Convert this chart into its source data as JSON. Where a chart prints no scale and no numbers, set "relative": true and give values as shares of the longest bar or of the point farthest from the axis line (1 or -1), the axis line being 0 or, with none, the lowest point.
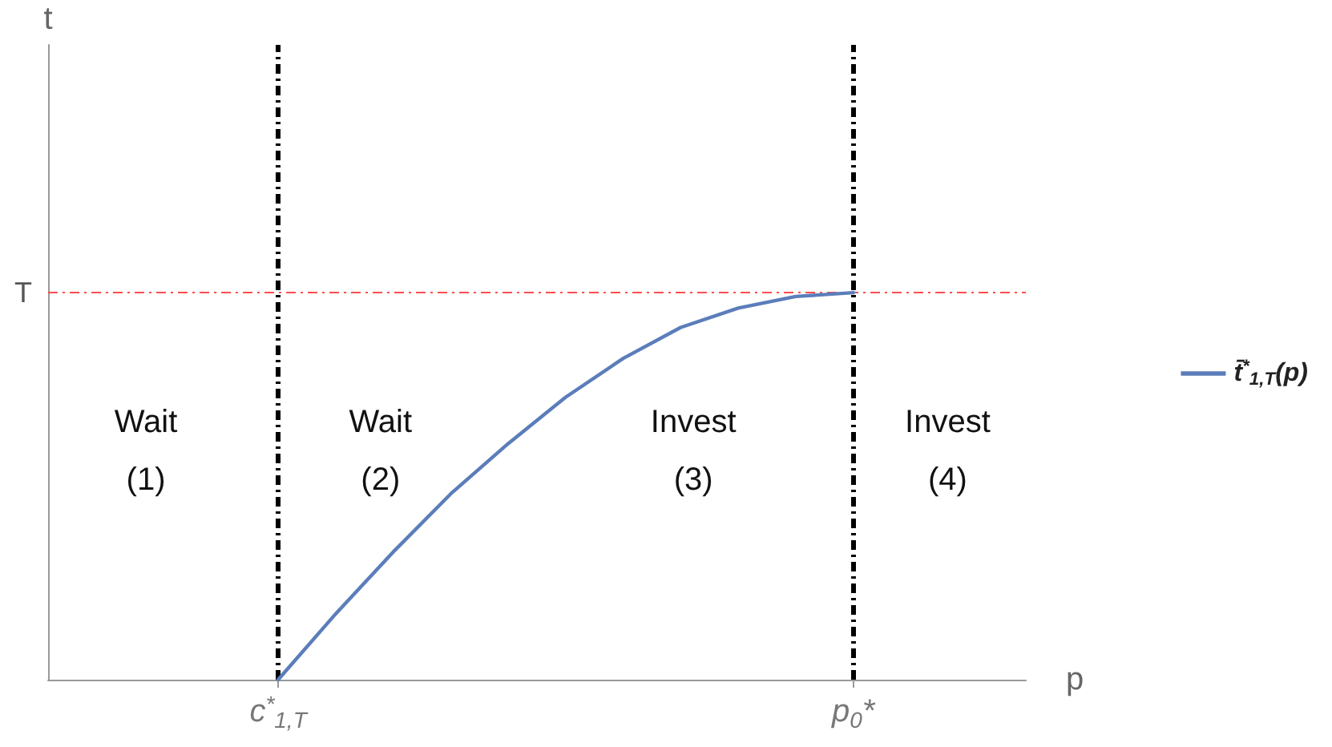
{
  "chart_data": {
    "type": "line",
    "relative": true,
    "xlabel": "p",
    "categories": [
      null,
      null,
      null,
      null,
      "c$^{*}$$_{1,T}$",
      null,
      null,
      null,
      null,
      null,
      null,
      null,
      null,
      null,
      "p$_{0}$*",
      null,
      null,
      null
    ],
    "series": [
      {
        "name": "t̄$^{*}$$_{1,T}$(p)",
        "color": "#5b7dba",
        "values": [
          null,
          null,
          null,
          null,
          0,
          0.17,
          0.33,
          0.48,
          0.61,
          0.73,
          0.83,
          0.91,
          0.96,
          0.99,
          1,
          null,
          null,
          null
        ]
      }
    ],
    "ref_lines": [
      {
        "axis": "x",
        "value": "c$^{*}$$_{1,T}$",
        "color": "#000000",
        "line_style": "dashdot"
      },
      {
        "axis": "x",
        "value": "p$_{0}$*",
        "color": "#000000",
        "line_style": "dashdot"
      },
      {
        "axis": "y",
        "value": 1,
        "label": "T",
        "color": "#ff4d4d",
        "line_style": "dashdot"
      }
    ],
    "annotations": [
      "t",
      "Wait\n(1)",
      "Wait\n(2)",
      "Invest\n(3)",
      "Invest\n(4)"
    ],
    "legend": "right",
    "grid": false,
    "marker": "none",
    "line_style": "solid"
  }
}
